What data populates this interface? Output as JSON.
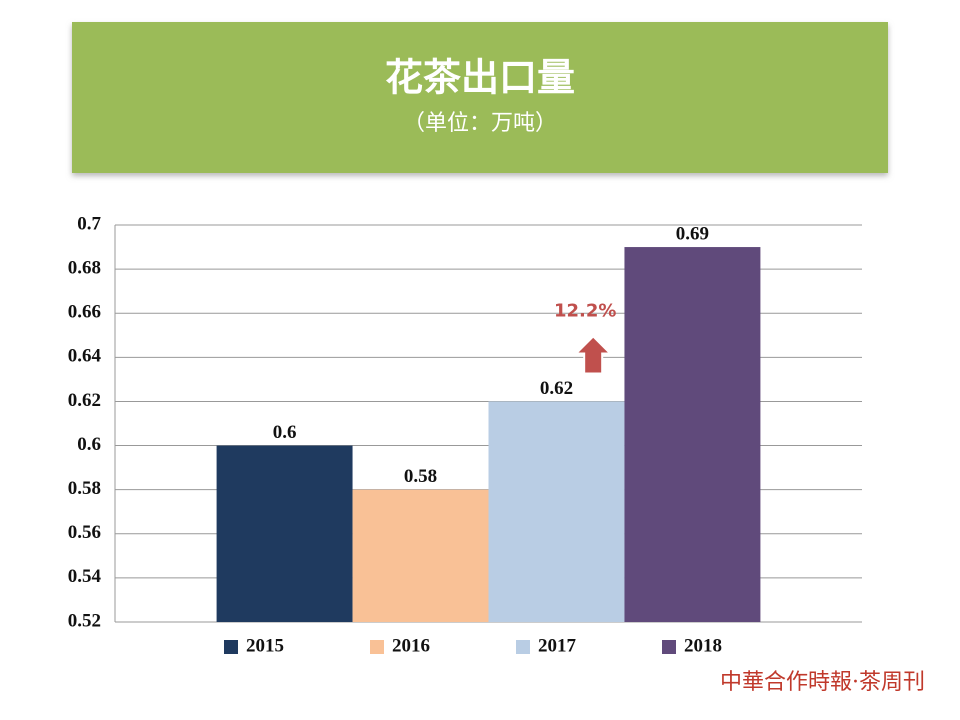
{
  "chart_data": {
    "type": "bar",
    "title": "花茶出口量",
    "subtitle": "（单位：万吨）",
    "categories": [
      null
    ],
    "series": [
      {
        "name": "2015",
        "color": "#1f3a5f",
        "values": [
          0.6
        ]
      },
      {
        "name": "2016",
        "color": "#f9c196",
        "values": [
          0.58
        ]
      },
      {
        "name": "2017",
        "color": "#b9cde4",
        "values": [
          0.62
        ]
      },
      {
        "name": "2018",
        "color": "#604a7b",
        "values": [
          0.69
        ]
      }
    ],
    "ylim": [
      0.52,
      0.7
    ],
    "yticks": [
      0.52,
      0.54,
      0.56,
      0.58,
      0.6,
      0.62,
      0.64,
      0.66,
      0.68,
      0.7
    ],
    "grid": true,
    "legend": "bottom",
    "annotation": "12.2%",
    "watermark": "中華合作時報·茶周刊"
  }
}
